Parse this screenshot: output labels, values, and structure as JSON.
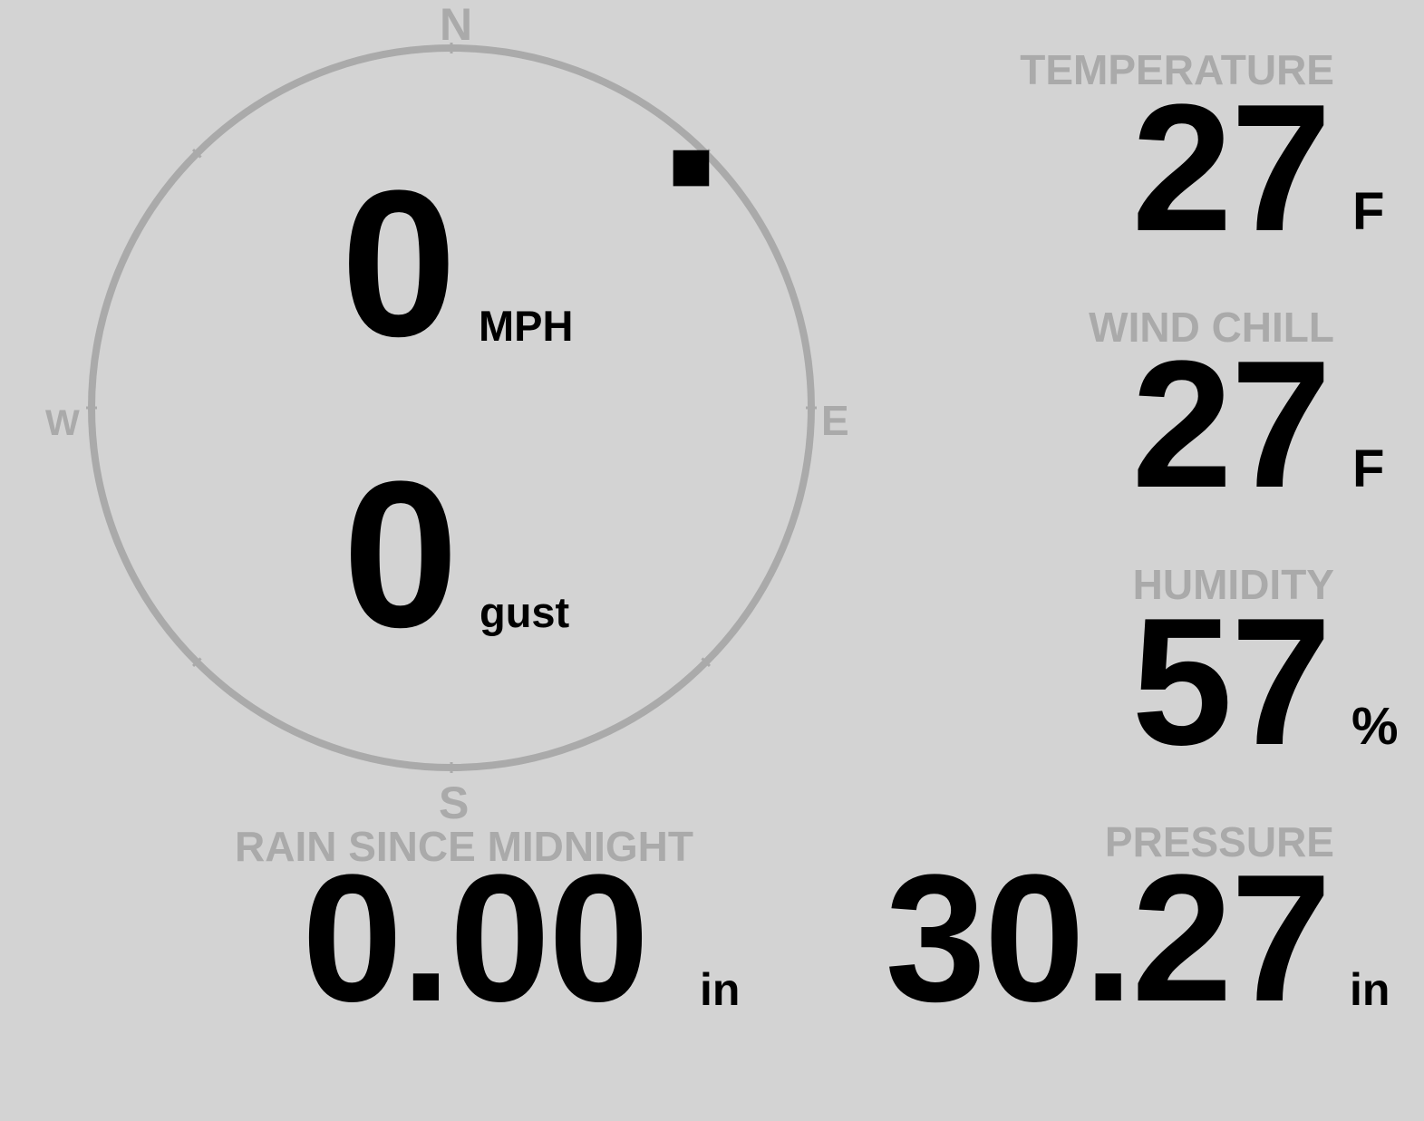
{
  "wind": {
    "compass": {
      "n": "N",
      "e": "E",
      "s": "S",
      "w": "W"
    },
    "direction_degrees": 45,
    "speed": "0",
    "speed_unit": "MPH",
    "gust": "0",
    "gust_unit": "gust"
  },
  "temperature": {
    "label": "TEMPERATURE",
    "value": "27",
    "unit": "F"
  },
  "wind_chill": {
    "label": "WIND CHILL",
    "value": "27",
    "unit": "F"
  },
  "humidity": {
    "label": "HUMIDITY",
    "value": "57",
    "unit": "%"
  },
  "pressure": {
    "label": "PRESSURE",
    "value": "30.27",
    "unit": "in"
  },
  "rain": {
    "label": "RAIN SINCE MIDNIGHT",
    "value": "0.00",
    "unit": "in"
  },
  "colors": {
    "background": "#d3d3d3",
    "label": "#aaaaaa",
    "value": "#000000"
  }
}
